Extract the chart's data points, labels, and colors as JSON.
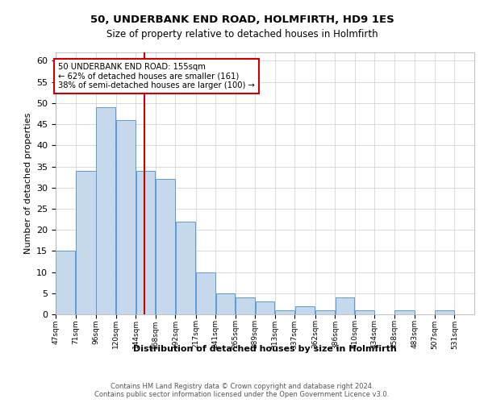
{
  "title1": "50, UNDERBANK END ROAD, HOLMFIRTH, HD9 1ES",
  "title2": "Size of property relative to detached houses in Holmfirth",
  "xlabel": "Distribution of detached houses by size in Holmfirth",
  "ylabel": "Number of detached properties",
  "annotation_line1": "50 UNDERBANK END ROAD: 155sqm",
  "annotation_line2": "← 62% of detached houses are smaller (161)",
  "annotation_line3": "38% of semi-detached houses are larger (100) →",
  "bar_left_edges": [
    47,
    71,
    96,
    120,
    144,
    168,
    192,
    217,
    241,
    265,
    289,
    313,
    337,
    362,
    386,
    410,
    434,
    458,
    483,
    507
  ],
  "bar_widths": [
    24,
    25,
    24,
    24,
    24,
    24,
    25,
    24,
    24,
    24,
    24,
    24,
    25,
    24,
    24,
    24,
    24,
    25,
    24,
    24
  ],
  "bar_heights": [
    15,
    34,
    49,
    46,
    34,
    32,
    22,
    10,
    5,
    4,
    3,
    1,
    2,
    1,
    4,
    1,
    0,
    1,
    0,
    1
  ],
  "tick_labels": [
    "47sqm",
    "71sqm",
    "96sqm",
    "120sqm",
    "144sqm",
    "168sqm",
    "192sqm",
    "217sqm",
    "241sqm",
    "265sqm",
    "289sqm",
    "313sqm",
    "337sqm",
    "362sqm",
    "386sqm",
    "410sqm",
    "434sqm",
    "458sqm",
    "483sqm",
    "507sqm",
    "531sqm"
  ],
  "bar_color": "#c6d9ec",
  "bar_edge_color": "#5b9bd5",
  "vline_x": 155,
  "vline_color": "#cc0000",
  "annotation_box_color": "#cc0000",
  "ylim": [
    0,
    62
  ],
  "xlim": [
    47,
    555
  ],
  "yticks": [
    0,
    5,
    10,
    15,
    20,
    25,
    30,
    35,
    40,
    45,
    50,
    55,
    60
  ],
  "footer_line1": "Contains HM Land Registry data © Crown copyright and database right 2024.",
  "footer_line2": "Contains public sector information licensed under the Open Government Licence v3.0.",
  "bg_color": "#ffffff",
  "grid_color": "#cccccc"
}
